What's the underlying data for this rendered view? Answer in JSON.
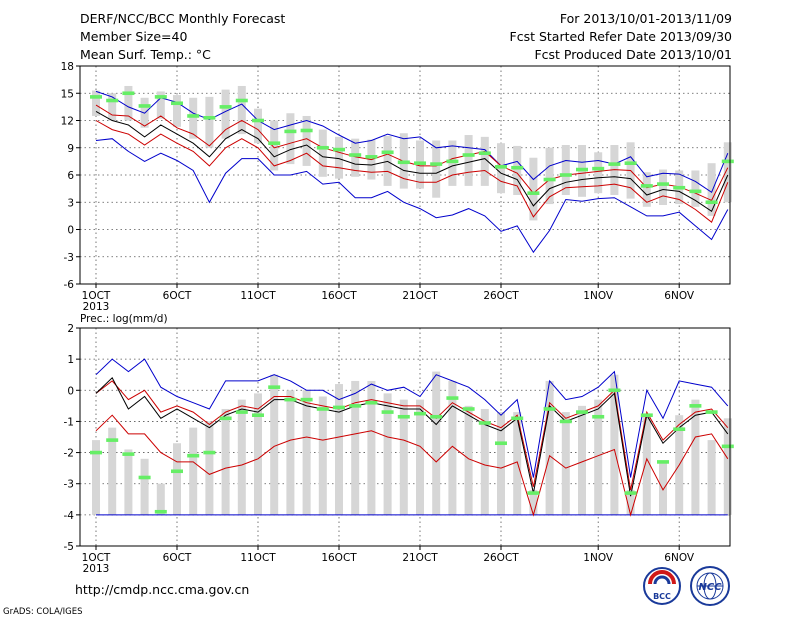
{
  "header": {
    "left": [
      "DERF/NCC/BCC Monthly Forecast",
      "Member Size=40",
      "Mean Surf. Temp.: °C"
    ],
    "right": [
      "For 2013/10/01-2013/11/09",
      "Fcst Started Refer Date 2013/09/30",
      "Fcst Produced Date 2013/10/01"
    ]
  },
  "footer": {
    "url": "http://cmdp.ncc.cma.gov.cn",
    "credit": "GrADS: COLA/IGES",
    "logo_left_text": "BCC",
    "logo_right_text": "NCC"
  },
  "colors": {
    "box": "#d6d6d6",
    "mean": "#000000",
    "inner_envelope": "#cc0000",
    "outer_envelope": "#0000cc",
    "marker": "#66ee66"
  },
  "chart_data": [
    {
      "type": "box",
      "title": "Mean Surf. Temp.: °C",
      "ylim": [
        -6,
        18
      ],
      "yticks": [
        -6,
        -3,
        0,
        3,
        6,
        9,
        12,
        15,
        18
      ],
      "grid": true,
      "x_tick_labels": [
        "1OCT",
        "6OCT",
        "11OCT",
        "16OCT",
        "21OCT",
        "26OCT",
        "1NOV",
        "6NOV"
      ],
      "x_tick_day": [
        1,
        6,
        11,
        16,
        21,
        26,
        32,
        37
      ],
      "year_label": "2013",
      "x_days": [
        1,
        2,
        3,
        4,
        5,
        6,
        7,
        8,
        9,
        10,
        11,
        12,
        13,
        14,
        15,
        16,
        17,
        18,
        19,
        20,
        21,
        22,
        23,
        24,
        25,
        26,
        27,
        28,
        29,
        30,
        31,
        32,
        33,
        34,
        35,
        36,
        37,
        38,
        39,
        40
      ],
      "box_high": [
        15.3,
        15,
        15.8,
        14.5,
        15.2,
        14.8,
        14.5,
        14.6,
        15.4,
        15.8,
        13.3,
        12,
        12.8,
        12.5,
        11,
        10.2,
        10,
        9.9,
        10.3,
        10.6,
        9.8,
        9.8,
        9.8,
        10.4,
        10.2,
        9.5,
        9.2,
        7.9,
        9,
        9.3,
        9.3,
        8.5,
        9.3,
        9.6,
        6.3,
        6.6,
        6.5,
        6.5,
        7.3,
        9.6
      ],
      "box_low": [
        12.5,
        12,
        12,
        11.2,
        12.2,
        11.3,
        10,
        9,
        10,
        10.5,
        9.5,
        6.5,
        7.2,
        7,
        5.8,
        5.6,
        5.8,
        5.5,
        4.8,
        4.5,
        4.5,
        3.5,
        4.8,
        4.8,
        4.8,
        4,
        3.8,
        1,
        2.8,
        3.8,
        3.6,
        4,
        3.8,
        3.4,
        2.5,
        2.7,
        2.8,
        2.5,
        1.5,
        3
      ],
      "marker": [
        14.6,
        14.2,
        15,
        13.6,
        14.6,
        13.9,
        12.5,
        12.3,
        13.5,
        14.2,
        12,
        9.5,
        10.8,
        10.9,
        9,
        8.8,
        8.2,
        8,
        8.5,
        7.4,
        7.3,
        7.2,
        7.5,
        8.2,
        8.4,
        6.9,
        6.8,
        4,
        5.5,
        6,
        6.6,
        6.7,
        7.2,
        7.3,
        4.8,
        5,
        4.6,
        4.2,
        3,
        7.5
      ],
      "mean": [
        13,
        12,
        11.5,
        10.2,
        11.5,
        10.5,
        9.5,
        8,
        10,
        11,
        10,
        8,
        8.8,
        9.3,
        8,
        7.8,
        7.2,
        7.1,
        7.5,
        6.5,
        6.2,
        6.2,
        7,
        7.4,
        7.8,
        6.2,
        5.5,
        2.6,
        4.5,
        5.2,
        5.5,
        5.7,
        5.8,
        5.6,
        3.8,
        4.4,
        4.2,
        3.2,
        2,
        6
      ],
      "inner_upper": [
        13.7,
        12.6,
        12.5,
        11.4,
        12.5,
        11.2,
        10.5,
        9.2,
        11,
        12,
        11,
        9,
        9.5,
        10,
        9,
        8.5,
        8,
        7.7,
        8.3,
        7.5,
        7,
        7,
        7.8,
        8.2,
        8.6,
        7,
        6.2,
        4,
        5.5,
        6,
        6.2,
        6.4,
        6.6,
        6.5,
        4.6,
        5,
        4.7,
        4,
        3.2,
        6.8
      ],
      "inner_lower": [
        12,
        11,
        10.5,
        9.3,
        10.5,
        9.5,
        8.6,
        7,
        9,
        10,
        9,
        7,
        7.6,
        8.4,
        7,
        6.8,
        6.5,
        6.3,
        6.4,
        5.6,
        5.2,
        5.2,
        6,
        6.3,
        6.5,
        5.3,
        4.8,
        1.4,
        3.6,
        4.6,
        4.7,
        4.8,
        5,
        4.6,
        3,
        3.7,
        3.3,
        2.2,
        0.8,
        5.2
      ],
      "outer_upper": [
        15.2,
        14.6,
        13.5,
        12.8,
        14.5,
        14,
        12.8,
        12.1,
        13,
        13.8,
        12,
        11,
        11.5,
        12,
        11.4,
        10.4,
        9.5,
        9.8,
        10.5,
        10,
        10.2,
        9,
        9.2,
        9,
        8.8,
        7,
        7.5,
        5.5,
        7,
        7.6,
        7.4,
        7.6,
        7.2,
        8,
        5.8,
        6.2,
        6.1,
        5.3,
        4.1,
        8.4
      ],
      "outer_lower": [
        9.8,
        10,
        8.6,
        7.5,
        8.4,
        7.6,
        6.5,
        3,
        6.2,
        7.8,
        7.8,
        6,
        6,
        6.4,
        5,
        5.2,
        3.5,
        3.5,
        4.2,
        3,
        2.3,
        1.3,
        1.6,
        2.3,
        1.5,
        -0.2,
        0.4,
        -2.5,
        -0.1,
        3.3,
        3.1,
        3.4,
        3.5,
        2.5,
        1.5,
        1.5,
        1.9,
        0.4,
        -1.1,
        2.2
      ]
    },
    {
      "type": "box",
      "title": "Prec.: log(mm/d)",
      "ylim": [
        -5,
        2
      ],
      "yticks": [
        -5,
        -4,
        -3,
        -2,
        -1,
        0,
        1,
        2
      ],
      "grid": true,
      "x_tick_labels": [
        "1OCT",
        "6OCT",
        "11OCT",
        "16OCT",
        "21OCT",
        "26OCT",
        "1NOV",
        "6NOV"
      ],
      "x_tick_day": [
        1,
        6,
        11,
        16,
        21,
        26,
        32,
        37
      ],
      "year_label": "2013",
      "x_days": [
        1,
        2,
        3,
        4,
        5,
        6,
        7,
        8,
        9,
        10,
        11,
        12,
        13,
        14,
        15,
        16,
        17,
        18,
        19,
        20,
        21,
        22,
        23,
        24,
        25,
        26,
        27,
        28,
        29,
        30,
        31,
        32,
        33,
        34,
        35,
        36,
        37,
        38,
        39,
        40
      ],
      "box_high": [
        -1.6,
        -1.2,
        -1.9,
        -2.2,
        -3,
        -1.7,
        -1.2,
        -1,
        -0.6,
        -0.3,
        -0.1,
        0.5,
        0,
        0,
        -0.2,
        0.2,
        0.3,
        0.3,
        -0.1,
        -0.3,
        -0.3,
        0.6,
        0.3,
        -0.5,
        -0.6,
        -0.7,
        -0.7,
        -3.2,
        0.3,
        -0.7,
        -0.5,
        -0.3,
        0.5,
        -3.2,
        -0.8,
        -2.3,
        -0.8,
        -0.3,
        -1.6,
        -0.9
      ],
      "box_low": [
        -4,
        -4,
        -4,
        -4,
        -4,
        -4,
        -4,
        -4,
        -4,
        -4,
        -4,
        -4,
        -4,
        -4,
        -4,
        -4,
        -4,
        -4,
        -4,
        -4,
        -4,
        -4,
        -4,
        -4,
        -4,
        -4,
        -4,
        -4,
        -4,
        -4,
        -4,
        -4,
        -4,
        -4,
        -4,
        -4,
        -4,
        -4,
        -4,
        -4
      ],
      "marker": [
        -2,
        -1.6,
        -2.05,
        -2.8,
        -3.9,
        -2.6,
        -2.1,
        -2,
        -0.9,
        -0.7,
        -0.8,
        0.1,
        -0.3,
        -0.3,
        -0.6,
        -0.55,
        -0.5,
        -0.4,
        -0.7,
        -0.85,
        -0.75,
        -0.85,
        -0.25,
        -0.6,
        -1.05,
        -1.7,
        -0.9,
        -3.3,
        -0.6,
        -1,
        -0.7,
        -0.85,
        0,
        -3.3,
        -0.8,
        -2.3,
        -1.25,
        -0.5,
        -0.7,
        -1.8
      ],
      "mean": [
        -0.1,
        0.4,
        -0.6,
        -0.2,
        -0.9,
        -0.6,
        -0.9,
        -1.2,
        -0.8,
        -0.6,
        -0.7,
        -0.3,
        -0.3,
        -0.5,
        -0.6,
        -0.7,
        -0.5,
        -0.4,
        -0.5,
        -0.6,
        -0.6,
        -1.1,
        -0.5,
        -0.8,
        -1.1,
        -1.3,
        -0.9,
        -3.3,
        -0.5,
        -1,
        -0.8,
        -0.6,
        -0.1,
        -3.4,
        -0.8,
        -1.7,
        -1.2,
        -0.8,
        -0.7,
        -1.4
      ],
      "inner_upper": [
        -0.1,
        0.3,
        -0.3,
        0,
        -0.7,
        -0.5,
        -0.7,
        -1.1,
        -0.7,
        -0.5,
        -0.6,
        -0.2,
        -0.2,
        -0.4,
        -0.5,
        -0.6,
        -0.4,
        -0.3,
        -0.4,
        -0.5,
        -0.5,
        -0.9,
        -0.4,
        -0.7,
        -1,
        -1.2,
        -0.8,
        -3.1,
        -0.4,
        -0.9,
        -0.7,
        -0.5,
        0,
        -3.2,
        -0.7,
        -1.6,
        -1.1,
        -0.7,
        -0.6,
        -1.2
      ],
      "inner_lower": [
        -1.3,
        -0.8,
        -1.4,
        -1.4,
        -2,
        -2.3,
        -2.3,
        -2.7,
        -2.5,
        -2.4,
        -2.2,
        -1.8,
        -1.6,
        -1.5,
        -1.6,
        -1.5,
        -1.4,
        -1.3,
        -1.5,
        -1.6,
        -1.8,
        -2.3,
        -1.8,
        -2.2,
        -2.4,
        -2.5,
        -2.3,
        -4,
        -2.1,
        -2.5,
        -2.3,
        -2.1,
        -1.9,
        -4,
        -2.2,
        -3.2,
        -2.4,
        -1.5,
        -1.4,
        -2.2
      ],
      "outer_upper": [
        0.5,
        1,
        0.6,
        1,
        0.1,
        -0.2,
        -0.4,
        -0.6,
        0.3,
        0.3,
        0.3,
        0.5,
        0.3,
        0,
        0,
        -0.3,
        -0.1,
        0.2,
        0,
        0.1,
        -0.2,
        0.5,
        0.3,
        0.1,
        -0.3,
        -0.8,
        -0.3,
        -2.8,
        0.3,
        -0.3,
        -0.2,
        0.1,
        0.6,
        -2.8,
        0,
        -0.9,
        0.3,
        0.2,
        0.1,
        -0.5
      ],
      "outer_lower": [
        -4,
        -4,
        -4,
        -4,
        -4,
        -4,
        -4,
        -4,
        -4,
        -4,
        -4,
        -4,
        -4,
        -4,
        -4,
        -4,
        -4,
        -4,
        -4,
        -4,
        -4,
        -4,
        -4,
        -4,
        -4,
        -4,
        -4,
        -4,
        -4,
        -4,
        -4,
        -4,
        -4,
        -4,
        -4,
        -4,
        -4,
        -4,
        -4,
        -4
      ]
    }
  ]
}
